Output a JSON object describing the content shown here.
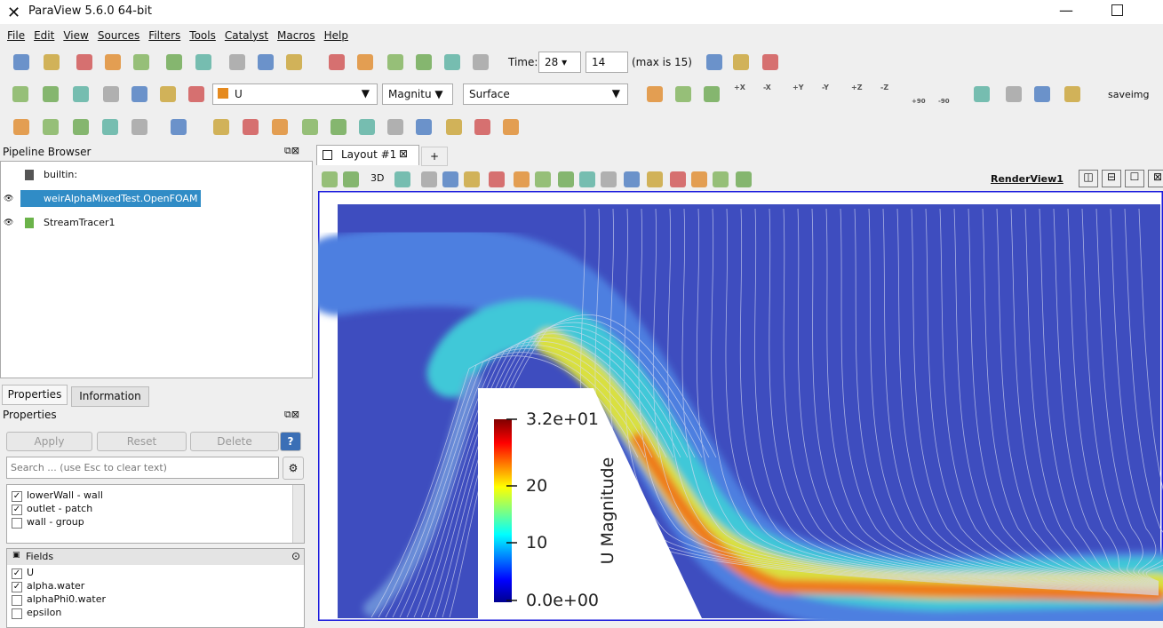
{
  "window": {
    "title": "ParaView 5.6.0 64-bit"
  },
  "menu": [
    "File",
    "Edit",
    "View",
    "Sources",
    "Filters",
    "Tools",
    "Catalyst",
    "Macros",
    "Help"
  ],
  "toolbar": {
    "time_label": "Time:",
    "time_value": "28",
    "time_step": "14",
    "time_max": "(max is 15)",
    "array": "U",
    "component": "Magnitu",
    "representation": "Surface",
    "saveimg": "saveimg",
    "camera": [
      "+X",
      "-X",
      "+Y",
      "-Y",
      "+Z",
      "-Z",
      "+90",
      "-90"
    ]
  },
  "pipeline": {
    "title": "Pipeline Browser",
    "items": [
      {
        "label": "builtin:",
        "selected": false
      },
      {
        "label": "weirAlphaMixedTest.OpenFOAM",
        "selected": true
      },
      {
        "label": "StreamTracer1",
        "selected": false
      }
    ]
  },
  "tabs": [
    "Properties",
    "Information"
  ],
  "properties": {
    "title": "Properties",
    "buttons": [
      "Apply",
      "Reset",
      "Delete",
      "?"
    ],
    "search": "Search ... (use Esc to clear text)",
    "regions": [
      {
        "label": "lowerWall - wall",
        "checked": true
      },
      {
        "label": "outlet - patch",
        "checked": true
      },
      {
        "label": "wall - group",
        "checked": false
      }
    ],
    "fields_title": "Fields",
    "fields": [
      {
        "label": "U",
        "checked": true
      },
      {
        "label": "alpha.water",
        "checked": true
      },
      {
        "label": "alphaPhi0.water",
        "checked": false
      },
      {
        "label": "epsilon",
        "checked": false
      }
    ]
  },
  "layout": {
    "tab": "Layout #1",
    "new_tab": "+",
    "view_mode": "3D",
    "view_name": "RenderView1"
  },
  "color_legend": {
    "title": "U Magnitude",
    "labels": [
      "3.2e+01",
      "20",
      "10",
      "0.0e+00"
    ]
  }
}
